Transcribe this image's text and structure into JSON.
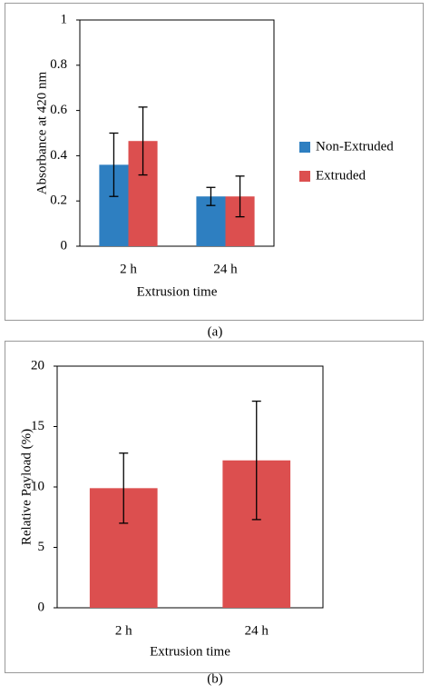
{
  "chart_data": [
    {
      "type": "bar",
      "caption": "(a)",
      "x_label": "Extrusion time",
      "y_label": "Absorbance  at 420 nm",
      "categories": [
        "2 h",
        "24 h"
      ],
      "series": [
        {
          "name": "Non-Extruded",
          "color": "#2e7fc1",
          "values": [
            0.36,
            0.22
          ],
          "errors": [
            0.14,
            0.04
          ]
        },
        {
          "name": "Extruded",
          "color": "#dc4f4f",
          "values": [
            0.465,
            0.22
          ],
          "errors": [
            0.15,
            0.09
          ]
        }
      ],
      "ylim": [
        0,
        1
      ],
      "yticks": [
        0,
        0.2,
        0.4,
        0.6,
        0.8,
        1
      ],
      "legend": "right"
    },
    {
      "type": "bar",
      "caption": "(b)",
      "x_label": "Extrusion time",
      "y_label": "Relative  Payload (%)",
      "categories": [
        "2 h",
        "24 h"
      ],
      "color": "#dc4f4f",
      "values": [
        9.9,
        12.2
      ],
      "errors": [
        2.9,
        4.9
      ],
      "ylim": [
        0,
        20
      ],
      "yticks": [
        0,
        5,
        10,
        15,
        20
      ]
    }
  ]
}
